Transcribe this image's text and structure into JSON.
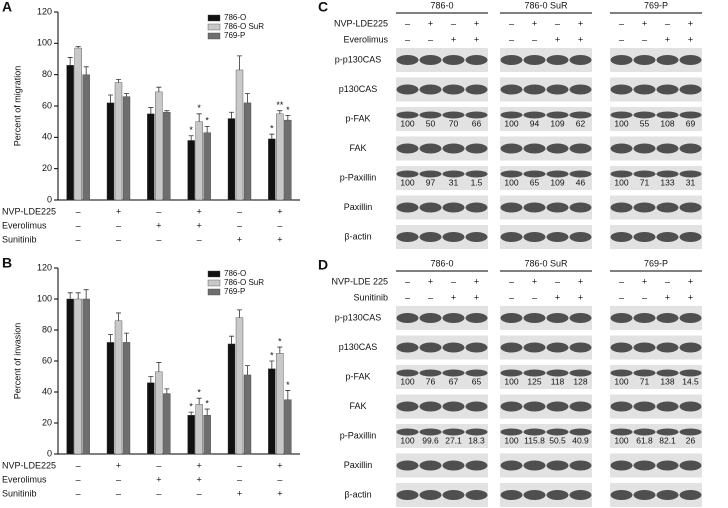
{
  "chart_data": [
    {
      "type": "bar",
      "label": "A",
      "y_label": "Percent of migration",
      "categories": [
        null,
        null,
        null,
        null,
        null,
        null
      ],
      "ylim": [
        0,
        120
      ],
      "yticks": [
        0,
        20,
        40,
        60,
        80,
        100,
        120
      ],
      "legend": "top-right",
      "series": [
        {
          "name": "786-O",
          "color": "#111111",
          "values": [
            86,
            62,
            55,
            38,
            52,
            39
          ],
          "errors": [
            5,
            5,
            4,
            3,
            4,
            3
          ],
          "significance": [
            null,
            null,
            null,
            "*",
            null,
            "*"
          ]
        },
        {
          "name": "786-O SuR",
          "color": "#c8c8c8",
          "values": [
            97,
            75,
            69,
            50,
            83,
            55
          ],
          "errors": [
            1,
            2,
            3,
            5,
            9,
            2
          ],
          "significance": [
            null,
            null,
            null,
            "*",
            null,
            "**"
          ]
        },
        {
          "name": "769-P",
          "color": "#6e6e6e",
          "values": [
            80,
            66,
            56,
            43,
            62,
            51
          ],
          "errors": [
            5,
            2,
            1,
            4,
            6,
            3
          ],
          "significance": [
            null,
            null,
            null,
            "*",
            null,
            "*"
          ]
        }
      ],
      "treatments": [
        {
          "name": "NVP-LDE225",
          "signs": [
            "–",
            "+",
            "–",
            "+",
            "–",
            "+"
          ]
        },
        {
          "name": "Everolimus",
          "signs": [
            "–",
            "–",
            "+",
            "+",
            "–",
            "–"
          ]
        },
        {
          "name": "Sunitinib",
          "signs": [
            "–",
            "–",
            "–",
            "–",
            "+",
            "+"
          ]
        }
      ]
    },
    {
      "type": "bar",
      "label": "B",
      "y_label": "Percent of invasion",
      "categories": [
        null,
        null,
        null,
        null,
        null,
        null
      ],
      "ylim": [
        0,
        120
      ],
      "yticks": [
        0,
        20,
        40,
        60,
        80,
        100,
        120
      ],
      "legend": "top-right",
      "series": [
        {
          "name": "786-O",
          "color": "#111111",
          "values": [
            100,
            72,
            46,
            25,
            71,
            55
          ],
          "errors": [
            4,
            5,
            4,
            2,
            5,
            5
          ],
          "significance": [
            null,
            null,
            null,
            "*",
            null,
            "*"
          ]
        },
        {
          "name": "786-O SuR",
          "color": "#c8c8c8",
          "values": [
            100,
            86,
            53,
            32,
            88,
            65
          ],
          "errors": [
            4,
            5,
            6,
            4,
            5,
            4
          ],
          "significance": [
            null,
            null,
            null,
            "*",
            null,
            "*"
          ]
        },
        {
          "name": "769-P",
          "color": "#6e6e6e",
          "values": [
            100,
            72,
            39,
            25,
            51,
            35
          ],
          "errors": [
            6,
            6,
            3,
            4,
            6,
            6
          ],
          "significance": [
            null,
            null,
            null,
            "*",
            null,
            "*"
          ]
        }
      ],
      "treatments": [
        {
          "name": "NVP-LDE225",
          "signs": [
            "–",
            "+",
            "–",
            "+",
            "–",
            "+"
          ]
        },
        {
          "name": "Everolimus",
          "signs": [
            "–",
            "–",
            "+",
            "+",
            "–",
            "–"
          ]
        },
        {
          "name": "Sunitinib",
          "signs": [
            "–",
            "–",
            "–",
            "–",
            "+",
            "+"
          ]
        }
      ]
    }
  ],
  "blots": [
    {
      "label": "C",
      "groups": [
        "786-0",
        "786-0 SuR",
        "769-P"
      ],
      "treatments": [
        {
          "name": "NVP-LDE225",
          "signs": [
            "–",
            "+",
            "–",
            "+"
          ]
        },
        {
          "name": "Everolimus",
          "signs": [
            "–",
            "–",
            "+",
            "+"
          ]
        }
      ],
      "rows": [
        {
          "name": "p-p130CAS"
        },
        {
          "name": "p130CAS"
        },
        {
          "name": "p-FAK",
          "values": [
            [
              100,
              50,
              70,
              66
            ],
            [
              100,
              94,
              109,
              62
            ],
            [
              100,
              55,
              108,
              69
            ]
          ]
        },
        {
          "name": "FAK"
        },
        {
          "name": "p-Paxillin",
          "values": [
            [
              100,
              97,
              31,
              1.5
            ],
            [
              100,
              65,
              109,
              46
            ],
            [
              100,
              71,
              133,
              31
            ]
          ]
        },
        {
          "name": "Paxillin"
        },
        {
          "name": "β-actin"
        }
      ]
    },
    {
      "label": "D",
      "groups": [
        "786-0",
        "786-0 SuR",
        "769-P"
      ],
      "treatments": [
        {
          "name": "NVP-LDE 225",
          "signs": [
            "–",
            "+",
            "–",
            "+"
          ]
        },
        {
          "name": "Sunitinib",
          "signs": [
            "–",
            "–",
            "+",
            "+"
          ]
        }
      ],
      "rows": [
        {
          "name": "p-p130CAS"
        },
        {
          "name": "p130CAS"
        },
        {
          "name": "p-FAK",
          "values": [
            [
              100,
              76,
              67,
              65
            ],
            [
              100,
              125,
              118,
              128
            ],
            [
              100,
              71,
              138,
              14.5
            ]
          ]
        },
        {
          "name": "FAK"
        },
        {
          "name": "p-Paxillin",
          "values": [
            [
              100,
              99.6,
              27.1,
              18.3
            ],
            [
              100,
              115.8,
              50.5,
              40.9
            ],
            [
              100,
              61.8,
              82.1,
              26
            ]
          ]
        },
        {
          "name": "Paxillin"
        },
        {
          "name": "β-actin"
        }
      ]
    }
  ]
}
